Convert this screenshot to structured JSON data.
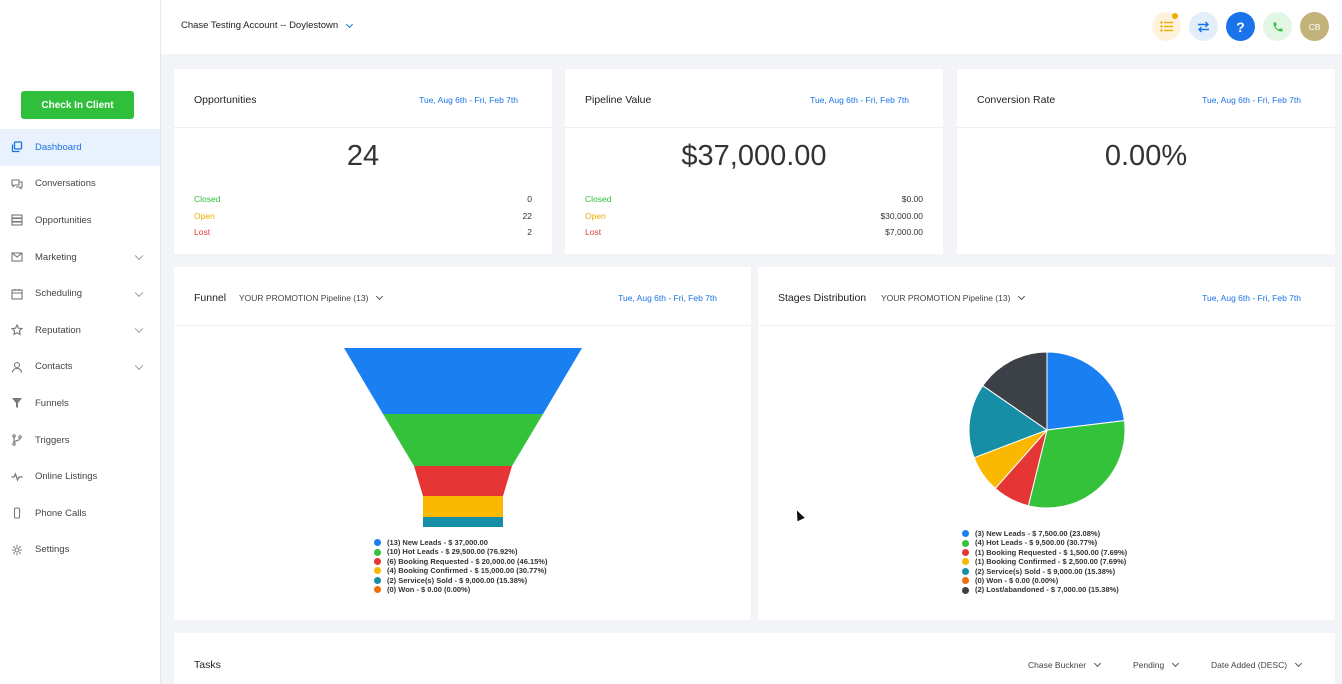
{
  "sidebar": {
    "check_in_label": "Check In Client",
    "items": [
      {
        "label": "Dashboard",
        "icon": "copy-icon",
        "active": true,
        "chevron": false
      },
      {
        "label": "Conversations",
        "icon": "chat-icon",
        "active": false,
        "chevron": false
      },
      {
        "label": "Opportunities",
        "icon": "layers-icon",
        "active": false,
        "chevron": false
      },
      {
        "label": "Marketing",
        "icon": "mail-icon",
        "active": false,
        "chevron": true
      },
      {
        "label": "Scheduling",
        "icon": "calendar-icon",
        "active": false,
        "chevron": true
      },
      {
        "label": "Reputation",
        "icon": "star-icon",
        "active": false,
        "chevron": true
      },
      {
        "label": "Contacts",
        "icon": "person-icon",
        "active": false,
        "chevron": true
      },
      {
        "label": "Funnels",
        "icon": "filter-icon",
        "active": false,
        "chevron": false
      },
      {
        "label": "Triggers",
        "icon": "branch-icon",
        "active": false,
        "chevron": false
      },
      {
        "label": "Online Listings",
        "icon": "pulse-icon",
        "active": false,
        "chevron": false
      },
      {
        "label": "Phone Calls",
        "icon": "phone-device-icon",
        "active": false,
        "chevron": false
      },
      {
        "label": "Settings",
        "icon": "gear-icon",
        "active": false,
        "chevron": false
      }
    ]
  },
  "header": {
    "account": "Chase Testing Account -- Doylestown",
    "avatar_initials": "CB",
    "colors": {
      "list": "#fdf3dc",
      "switch": "#e3eefb",
      "help": "#1a73e8",
      "phone": "#e3f6e5",
      "avatar": "#c2b37a"
    }
  },
  "opportunities": {
    "title": "Opportunities",
    "date": "Tue, Aug 6th - Fri, Feb 7th",
    "big": "24",
    "closed_label": "Closed",
    "closed": "0",
    "open_label": "Open",
    "open": "22",
    "lost_label": "Lost",
    "lost": "2"
  },
  "pipeline_value": {
    "title": "Pipeline Value",
    "date": "Tue, Aug 6th - Fri, Feb 7th",
    "big": "$37,000.00",
    "closed_label": "Closed",
    "closed": "$0.00",
    "open_label": "Open",
    "open": "$30,000.00",
    "lost_label": "Lost",
    "lost": "$7,000.00"
  },
  "conversion_rate": {
    "title": "Conversion Rate",
    "date": "Tue, Aug 6th - Fri, Feb 7th",
    "big": "0.00%"
  },
  "funnel": {
    "title": "Funnel",
    "pipeline": "YOUR PROMOTION Pipeline (13)",
    "date": "Tue, Aug 6th - Fri, Feb 7th"
  },
  "stages": {
    "title": "Stages Distribution",
    "pipeline": "YOUR PROMOTION Pipeline (13)",
    "date": "Tue, Aug 6th - Fri, Feb 7th"
  },
  "tasks": {
    "title": "Tasks",
    "filter_user": "Chase Buckner",
    "filter_status": "Pending",
    "filter_sort": "Date Added (DESC)"
  },
  "chart_data": [
    {
      "type": "funnel",
      "categories": [
        "New Leads",
        "Hot Leads",
        "Booking Requested",
        "Booking Confirmed",
        "Service(s) Sold",
        "Won"
      ],
      "values": [
        37000,
        29500,
        20000,
        15000,
        9000,
        0
      ],
      "colors": [
        "#1a7ff0",
        "#33c23a",
        "#e63535",
        "#fbb800",
        "#168fa6",
        "#f06d0c"
      ],
      "legend": [
        "(13) New Leads - $ 37,000.00",
        "(10) Hot Leads - $ 29,500.00 (76.92%)",
        "(6) Booking Requested - $ 20,000.00 (46.15%)",
        "(4) Booking Confirmed - $ 15,000.00 (30.77%)",
        "(2) Service(s) Sold - $ 9,000.00 (15.38%)",
        "(0) Won - $ 0.00 (0.00%)"
      ]
    },
    {
      "type": "pie",
      "categories": [
        "New Leads",
        "Hot Leads",
        "Booking Requested",
        "Booking Confirmed",
        "Service(s) Sold",
        "Won",
        "Lost/abandoned"
      ],
      "values": [
        3,
        4,
        1,
        1,
        2,
        0,
        2
      ],
      "colors": [
        "#1a7ff0",
        "#33c23a",
        "#e63535",
        "#fbb800",
        "#168fa6",
        "#f06d0c",
        "#3c4148"
      ],
      "legend": [
        "(3) New Leads - $ 7,500.00 (23.08%)",
        "(4) Hot Leads - $ 9,500.00 (30.77%)",
        "(1) Booking Requested - $ 1,500.00 (7.69%)",
        "(1) Booking Confirmed - $ 2,500.00 (7.69%)",
        "(2) Service(s) Sold - $ 9,000.00 (15.38%)",
        "(0) Won - $ 0.00 (0.00%)",
        "(2) Lost/abandoned - $ 7,000.00 (15.38%)"
      ]
    }
  ]
}
